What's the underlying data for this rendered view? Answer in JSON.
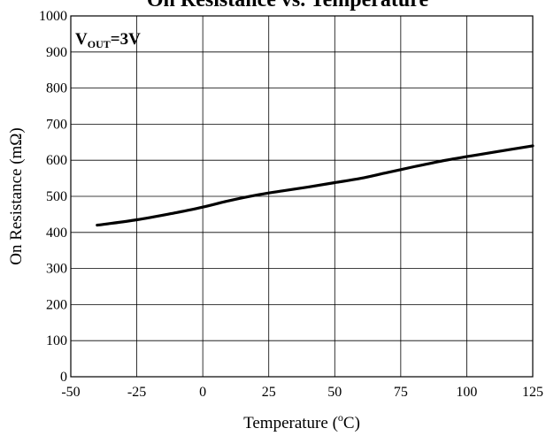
{
  "chart_data": {
    "type": "line",
    "title": "On Resistance vs. Temperature",
    "xlabel": {
      "prefix": "Temperature (",
      "sup": "o",
      "suffix": "C)"
    },
    "ylabel": "On Resistance (mΩ)",
    "xlim": [
      -50,
      125
    ],
    "ylim": [
      0,
      1000
    ],
    "x_ticks": [
      -50,
      -25,
      0,
      25,
      50,
      75,
      100,
      125
    ],
    "y_ticks": [
      0,
      100,
      200,
      300,
      400,
      500,
      600,
      700,
      800,
      900,
      1000
    ],
    "grid": true,
    "annotation": {
      "main": "V",
      "sub": "OUT",
      "rest": "=3V"
    },
    "series": [
      {
        "color": "#000000",
        "x": [
          -40,
          -25,
          -10,
          0,
          10,
          20,
          30,
          40,
          50,
          60,
          70,
          80,
          90,
          100,
          110,
          125
        ],
        "y": [
          420,
          435,
          455,
          470,
          488,
          503,
          515,
          526,
          538,
          550,
          566,
          582,
          597,
          610,
          622,
          640
        ]
      }
    ]
  }
}
